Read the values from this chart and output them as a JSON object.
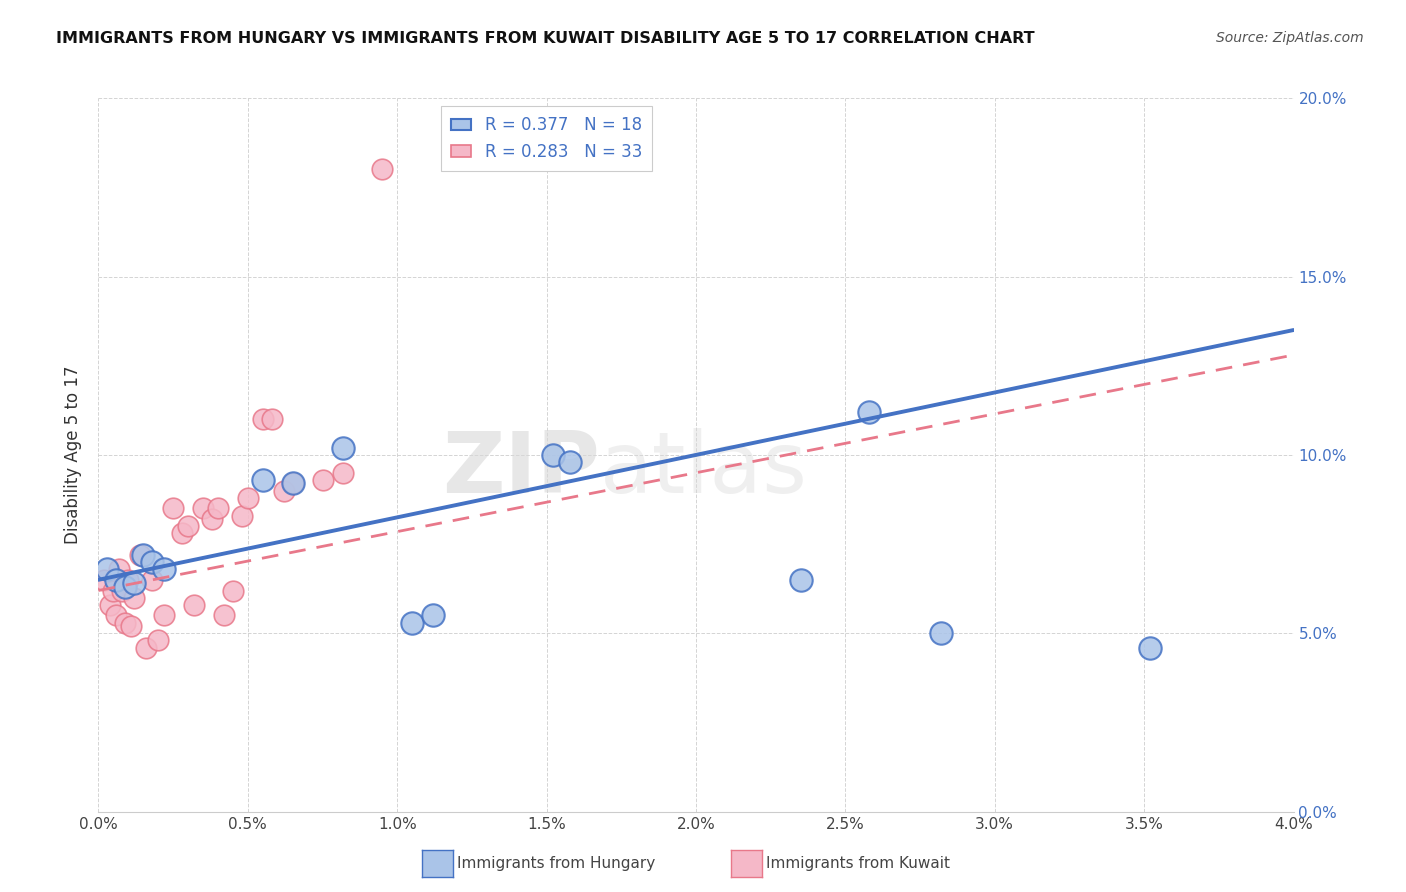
{
  "title": "IMMIGRANTS FROM HUNGARY VS IMMIGRANTS FROM KUWAIT DISABILITY AGE 5 TO 17 CORRELATION CHART",
  "source": "Source: ZipAtlas.com",
  "ylabel": "Disability Age 5 to 17",
  "watermark": "ZIPatlas",
  "xlim": [
    0.0,
    4.0
  ],
  "ylim": [
    0.0,
    20.0
  ],
  "xticks": [
    0.0,
    0.5,
    1.0,
    1.5,
    2.0,
    2.5,
    3.0,
    3.5,
    4.0
  ],
  "yticks": [
    0.0,
    5.0,
    10.0,
    15.0,
    20.0
  ],
  "legend_r1": "R = 0.377",
  "legend_n1": "N = 18",
  "legend_r2": "R = 0.283",
  "legend_n2": "N = 33",
  "color_hungary": "#aac4e8",
  "color_kuwait": "#f5b8c8",
  "color_hungary_line": "#4472c4",
  "color_kuwait_line": "#e8788a",
  "background_color": "#ffffff",
  "hungary_x": [
    0.03,
    0.06,
    0.09,
    0.12,
    0.15,
    0.18,
    0.22,
    0.55,
    0.65,
    0.82,
    1.05,
    1.12,
    1.52,
    1.58,
    2.35,
    2.58,
    2.82,
    3.52
  ],
  "hungary_y": [
    6.8,
    6.5,
    6.3,
    6.4,
    7.2,
    7.0,
    6.8,
    9.3,
    9.2,
    10.2,
    5.3,
    5.5,
    10.0,
    9.8,
    6.5,
    11.2,
    5.0,
    4.6
  ],
  "kuwait_x": [
    0.02,
    0.04,
    0.05,
    0.06,
    0.07,
    0.08,
    0.09,
    0.1,
    0.11,
    0.12,
    0.14,
    0.16,
    0.18,
    0.2,
    0.22,
    0.25,
    0.28,
    0.3,
    0.32,
    0.35,
    0.38,
    0.4,
    0.42,
    0.45,
    0.48,
    0.5,
    0.55,
    0.58,
    0.62,
    0.65,
    0.75,
    0.82,
    0.95
  ],
  "kuwait_y": [
    6.5,
    5.8,
    6.2,
    5.5,
    6.8,
    6.2,
    5.3,
    6.5,
    5.2,
    6.0,
    7.2,
    4.6,
    6.5,
    4.8,
    5.5,
    8.5,
    7.8,
    8.0,
    5.8,
    8.5,
    8.2,
    8.5,
    5.5,
    6.2,
    8.3,
    8.8,
    11.0,
    11.0,
    9.0,
    9.2,
    9.3,
    9.5,
    18.0
  ],
  "hungary_line_x0": 0.0,
  "hungary_line_y0": 6.5,
  "hungary_line_x1": 4.0,
  "hungary_line_y1": 13.5,
  "kuwait_line_x0": 0.0,
  "kuwait_line_y0": 6.2,
  "kuwait_line_x1": 4.0,
  "kuwait_line_y1": 12.8
}
